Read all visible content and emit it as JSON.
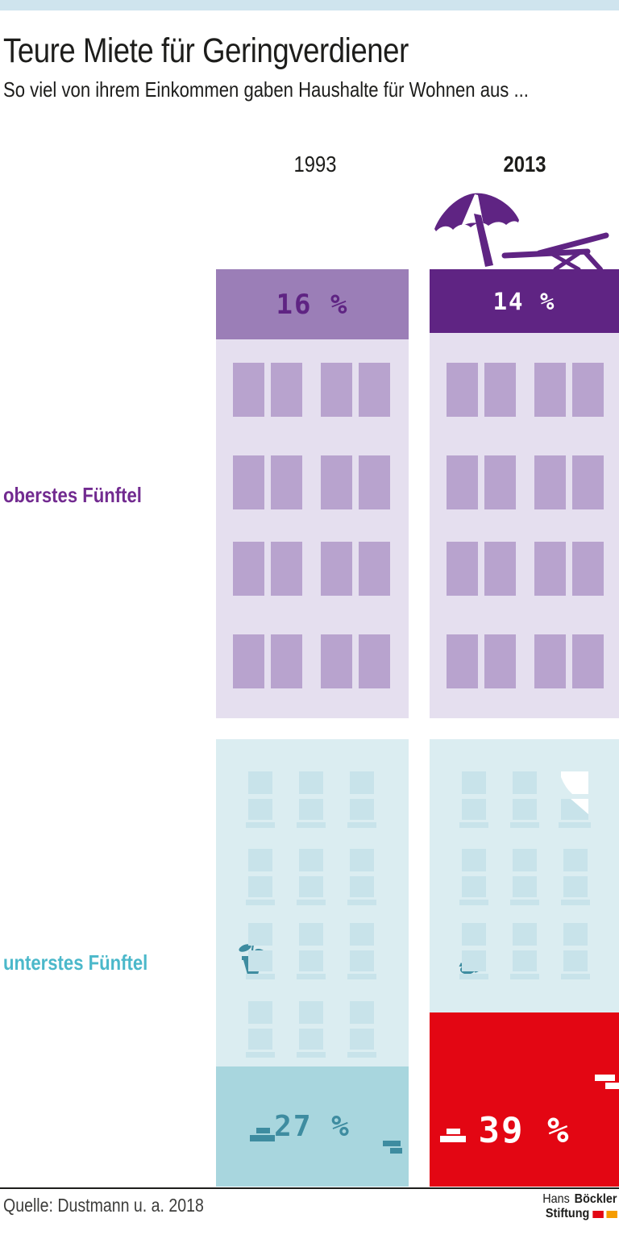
{
  "header": {
    "title": "Teure Miete für Geringverdiener",
    "subtitle": "So viel von ihrem Einkommen gaben Haushalte für Wohnen aus ..."
  },
  "columns": [
    {
      "label": "1993"
    },
    {
      "label": "2013"
    }
  ],
  "quintiles": [
    {
      "label": "oberstes Fünftel",
      "values": [
        {
          "year": "1993",
          "label": "16 %"
        },
        {
          "year": "2013",
          "label": "14 %"
        }
      ]
    },
    {
      "label": "unterstes Fünftel",
      "values": [
        {
          "year": "1993",
          "label": "27 %"
        },
        {
          "year": "2013",
          "label": "39 %"
        }
      ]
    }
  ],
  "icons": {
    "top_2013": "beach-umbrella-and-lounger",
    "bottom_1993": "potted-plant",
    "bottom_2013": [
      "broken-window",
      "sleeping-cat",
      "fallen-bricks"
    ],
    "bottom_1993_extra": "fallen-bricks"
  },
  "colors": {
    "topbar": "#cfe4ee",
    "purple-dark": "#5f2483",
    "purple-band": "#9b7eb7",
    "purple-body": "#e5dfef",
    "purple-win": "#b8a3ce",
    "purple-label": "#722b90",
    "teal-body": "#dbedf1",
    "teal-win": "#c8e3ea",
    "teal-band": "#a8d6de",
    "teal-dark": "#3e8ca0",
    "teal-label": "#4bb8ca",
    "red": "#e30613",
    "orange": "#f59c00",
    "source": "#3d3d3b"
  },
  "chart_data": {
    "type": "bar",
    "title": "Teure Miete für Geringverdiener",
    "subtitle": "So viel von ihrem Einkommen gaben Haushalte für Wohnen aus ...",
    "unit": "%",
    "categories": [
      "1993",
      "2013"
    ],
    "series": [
      {
        "name": "oberstes Fünftel",
        "values": [
          16,
          14
        ],
        "color": "#5f2483"
      },
      {
        "name": "unterstes Fünftel",
        "values": [
          27,
          39
        ],
        "color": "#3e8ca0",
        "highlight_color_2013": "#e30613"
      }
    ],
    "value_labels": [
      [
        "16 %",
        "14 %"
      ],
      [
        "27 %",
        "39 %"
      ]
    ],
    "legend_position": "left-row-labels",
    "grid": false,
    "source": "Quelle: Dustmann u. a. 2018"
  },
  "footer": {
    "source": "Quelle: Dustmann u. a. 2018",
    "logo": {
      "line1_regular": "Hans",
      "line1_bold": "Böckler",
      "line2_bold": "Stiftung"
    }
  }
}
